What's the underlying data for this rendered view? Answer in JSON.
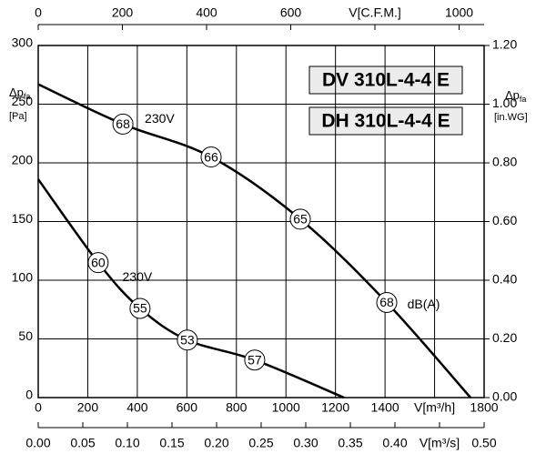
{
  "chart_data": {
    "type": "line",
    "titles": [
      "DV 310L-4-4 E",
      "DH 310L-4-4 E"
    ],
    "y_label": {
      "main": "Δp",
      "sub": "fa",
      "unit": "[Pa]"
    },
    "y2_label": {
      "main": "Δp",
      "sub": "fa",
      "unit": "[in.WG]"
    },
    "xlim": [
      0,
      1800
    ],
    "xticks": [
      0,
      200,
      400,
      600,
      800,
      1000,
      1200,
      1400,
      {
        "value": 1600,
        "label": "V[m³/h]"
      },
      1800
    ],
    "x_top_lim": [
      0,
      1059.4
    ],
    "x_top_ticks": [
      0,
      200,
      400,
      600,
      {
        "value": 800,
        "label": "V[C.F.M.]"
      },
      1000
    ],
    "x_bottom_lim": [
      0,
      0.5
    ],
    "x_bottom_ticks": [
      {
        "value": 0,
        "label": "0.00"
      },
      {
        "value": 0.05,
        "label": "0.05"
      },
      {
        "value": 0.1,
        "label": "0.10"
      },
      {
        "value": 0.15,
        "label": "0.15"
      },
      {
        "value": 0.2,
        "label": "0.20"
      },
      {
        "value": 0.25,
        "label": "0.25"
      },
      {
        "value": 0.3,
        "label": "0.30"
      },
      {
        "value": 0.35,
        "label": "0.35"
      },
      {
        "value": 0.4,
        "label": "0.40"
      },
      {
        "value": 0.45,
        "label": "V[m³/s]"
      },
      {
        "value": 0.5,
        "label": "0.50"
      }
    ],
    "ylim": [
      0,
      300
    ],
    "yticks": [
      0,
      50,
      100,
      150,
      200,
      250,
      300
    ],
    "y2lim": [
      0,
      1.2
    ],
    "y2ticks": [
      {
        "value": 0,
        "label": "0.00"
      },
      {
        "value": 0.2,
        "label": "0.20"
      },
      {
        "value": 0.4,
        "label": "0.40"
      },
      {
        "value": 0.6,
        "label": "0.60"
      },
      {
        "value": 0.8,
        "label": "0.80"
      },
      {
        "value": 1.0,
        "label": "1.00"
      },
      {
        "value": 1.2,
        "label": "1.20"
      }
    ],
    "grid": true,
    "series": [
      {
        "name": "230V",
        "color": "#000000",
        "x": [
          0,
          342,
          698,
          1058,
          1407,
          1745
        ],
        "values": [
          267,
          233,
          205,
          152,
          81,
          0
        ]
      },
      {
        "name": "230V",
        "color": "#000000",
        "x": [
          0,
          242,
          411,
          602,
          874,
          1234
        ],
        "values": [
          186,
          115,
          76,
          49,
          32,
          0
        ]
      }
    ],
    "markers": [
      {
        "x": 342,
        "y": 233,
        "label": "68"
      },
      {
        "x": 698,
        "y": 205,
        "label": "66"
      },
      {
        "x": 1058,
        "y": 152,
        "label": "65"
      },
      {
        "x": 1407,
        "y": 81,
        "label": "68"
      },
      {
        "x": 242,
        "y": 115,
        "label": "60"
      },
      {
        "x": 411,
        "y": 76,
        "label": "55"
      },
      {
        "x": 602,
        "y": 49,
        "label": "53"
      },
      {
        "x": 874,
        "y": 32,
        "label": "57"
      }
    ],
    "annotations": [
      {
        "text": "230V",
        "x": 430,
        "y": 237
      },
      {
        "text": "230V",
        "x": 340,
        "y": 102
      },
      {
        "text": "dB(A)",
        "x": 1490,
        "y": 79
      }
    ]
  }
}
